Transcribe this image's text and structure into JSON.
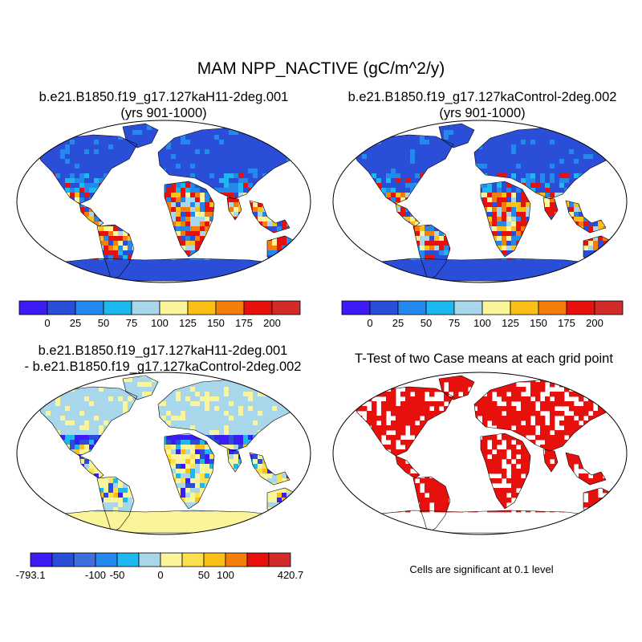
{
  "main_title": "MAM NPP_NACTIVE (gC/m^2/y)",
  "panels": {
    "case1": {
      "title": "b.e21.B1850.f19_g17.127kaH11-2deg.001",
      "subtitle": "(yrs 901-1000)"
    },
    "case2": {
      "title": "b.e21.B1850.f19_g17.127kaControl-2deg.002",
      "subtitle": "(yrs 901-1000)"
    },
    "diff": {
      "title": "b.e21.B1850.f19_g17.127kaH11-2deg.001",
      "subtitle": "- b.e21.B1850.f19_g17.127kaControl-2deg.002"
    },
    "ttest": {
      "title": "T-Test of two Case means at each grid point",
      "note": "Cells are significant at 0.1 level"
    }
  },
  "colorbar_abs": {
    "colors": [
      "#3c1cf4",
      "#2b4ed8",
      "#2389ec",
      "#1eb8f0",
      "#a8d6ea",
      "#faf49a",
      "#fbbf16",
      "#f57d0a",
      "#e8100c",
      "#d22b2b"
    ],
    "labels": [
      "0",
      "25",
      "50",
      "75",
      "100",
      "125",
      "150",
      "175",
      "200"
    ]
  },
  "colorbar_diff": {
    "colors": [
      "#3c1cf4",
      "#2b4ed8",
      "#3d6fde",
      "#2389ec",
      "#1eb8f0",
      "#a8d6ea",
      "#faf49a",
      "#fde050",
      "#fbbf16",
      "#f57d0a",
      "#e8100c",
      "#d22b2b"
    ],
    "labels": [
      "-793.1",
      "-100",
      "-50",
      "0",
      "50",
      "100",
      "420.7"
    ]
  },
  "colors": {
    "ocean": "#ffffff",
    "land_low": "#2b4ed8",
    "significant": "#e8100c",
    "diff_land": "#a8d6ea",
    "diff_pos": "#faf49a"
  }
}
